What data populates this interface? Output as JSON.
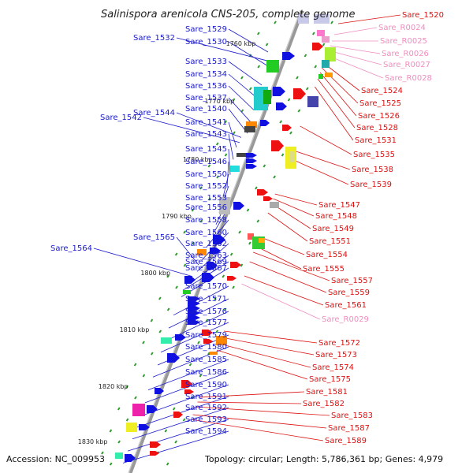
{
  "title": "Salinispora arenicola CNS-205, complete genome",
  "accession": "Accession: NC_009953",
  "summary": "Topology: circular; Length: 5,786,361 bp; Genes: 4,979",
  "colors": {
    "left_labels": "#1a1acc",
    "right_labels": "#dd1111",
    "rna_labels": "#f08cc0",
    "backbone": "#9a9a9a",
    "ticks": "#2d9a2d"
  },
  "coordinate_labels": [
    "1760 kbp",
    "1770 kbp",
    "1780 kbp",
    "1790 kbp",
    "1800 kbp",
    "1810 kbp",
    "1820 kbp",
    "1830 kbp"
  ],
  "left_genes": [
    "Sare_1529",
    "Sare_1532",
    "Sare_1530",
    "Sare_1533",
    "Sare_1534",
    "Sare_1536",
    "Sare_1537",
    "Sare_1540",
    "Sare_1544",
    "Sare_1542",
    "Sare_1541",
    "Sare_1543",
    "Sare_1545",
    "Sare_1546",
    "Sare_1550",
    "Sare_1552",
    "Sare_1553",
    "Sare_1556",
    "Sare_1558",
    "Sare_1560",
    "Sare_1565",
    "Sare_1562",
    "Sare_1564",
    "Sare_1563",
    "Sare_1569",
    "Sare_1567",
    "Sare_1570",
    "Sare_1571",
    "Sare_1576",
    "Sare_1577",
    "Sare_1579",
    "Sare_1580",
    "Sare_1585",
    "Sare_1586",
    "Sare_1590",
    "Sare_1591",
    "Sare_1592",
    "Sare_1593",
    "Sare_1594"
  ],
  "right_genes": [
    "Sare_1520",
    "Sare_R0024",
    "Sare_R0025",
    "Sare_R0026",
    "Sare_R0027",
    "Sare_R0028",
    "Sare_1524",
    "Sare_1525",
    "Sare_1526",
    "Sare_1528",
    "Sare_1531",
    "Sare_1535",
    "Sare_1538",
    "Sare_1539",
    "Sare_1547",
    "Sare_1548",
    "Sare_1549",
    "Sare_1551",
    "Sare_1554",
    "Sare_1555",
    "Sare_1557",
    "Sare_1559",
    "Sare_1561",
    "Sare_R0029",
    "Sare_1572",
    "Sare_1573",
    "Sare_1574",
    "Sare_1575",
    "Sare_1581",
    "Sare_1582",
    "Sare_1583",
    "Sare_1587",
    "Sare_1589"
  ]
}
